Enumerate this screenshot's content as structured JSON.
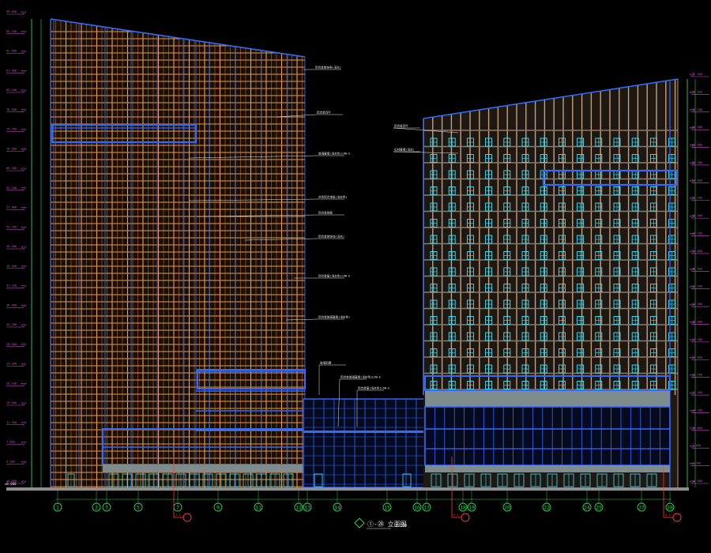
{
  "drawing": {
    "title": "①-㉘ 立面图",
    "scale": "1:100",
    "background": "#000000"
  },
  "colors": {
    "frame_orange": "#e89a4a",
    "glass_blue": "#2f6bff",
    "window_cyan": "#3fe6ff",
    "dim_green": "#2bd25a",
    "annotation_magenta": "#d64bd6",
    "section_red": "#ff3b3b",
    "ground_gray": "#8e8e8e",
    "slab_gray": "#7f8c8d",
    "text_white": "#e8e8e8"
  },
  "axis_labels": [
    "1",
    "2",
    "3",
    "5",
    "7",
    "9",
    "11",
    "12",
    "13",
    "14",
    "15",
    "16",
    "17",
    "18",
    "19",
    "20",
    "22",
    "24",
    "25",
    "27",
    "28"
  ],
  "section_marks": [
    "1-1",
    "2-2",
    "3-3"
  ],
  "level_marks_left": [
    "99.600",
    "95.700",
    "91.500",
    "87.300",
    "83.100",
    "78.900",
    "74.700",
    "70.500",
    "66.300",
    "62.100",
    "57.900",
    "53.700",
    "49.500",
    "45.300",
    "41.100",
    "36.900",
    "32.700",
    "28.500",
    "24.300",
    "20.100",
    "15.900",
    "11.700",
    "7.500",
    "4.200",
    "±0.000"
  ],
  "level_marks_right": [
    "77.400",
    "73.500",
    "70.200",
    "66.900",
    "63.600",
    "60.300",
    "57.000",
    "53.700",
    "50.400",
    "47.100",
    "43.800",
    "40.500",
    "37.200",
    "33.900",
    "30.600",
    "27.300",
    "24.000",
    "20.700",
    "17.400",
    "14.100",
    "10.800",
    "7.500",
    "4.200",
    "±0.000"
  ],
  "annotations": [
    "铝合金装饰条(深灰)",
    "铝合金百叶",
    "玻璃幕墙(浅灰色)LOW-E",
    "灰色铝合金板(浅灰色)",
    "铝合金竖框",
    "铝合金装饰线(深灰)",
    "铝合金窗(浅灰色)LOW-E",
    "铝合金玻璃幕墙(浅灰色)",
    "玻璃雨棚",
    "铝合金玻璃幕墙(浅灰色)LOW-E",
    "铝合金窗(浅灰色)LOW-E",
    "铝合金百叶",
    "石材幕墙(浅灰)"
  ],
  "ground_label": "±0.000"
}
